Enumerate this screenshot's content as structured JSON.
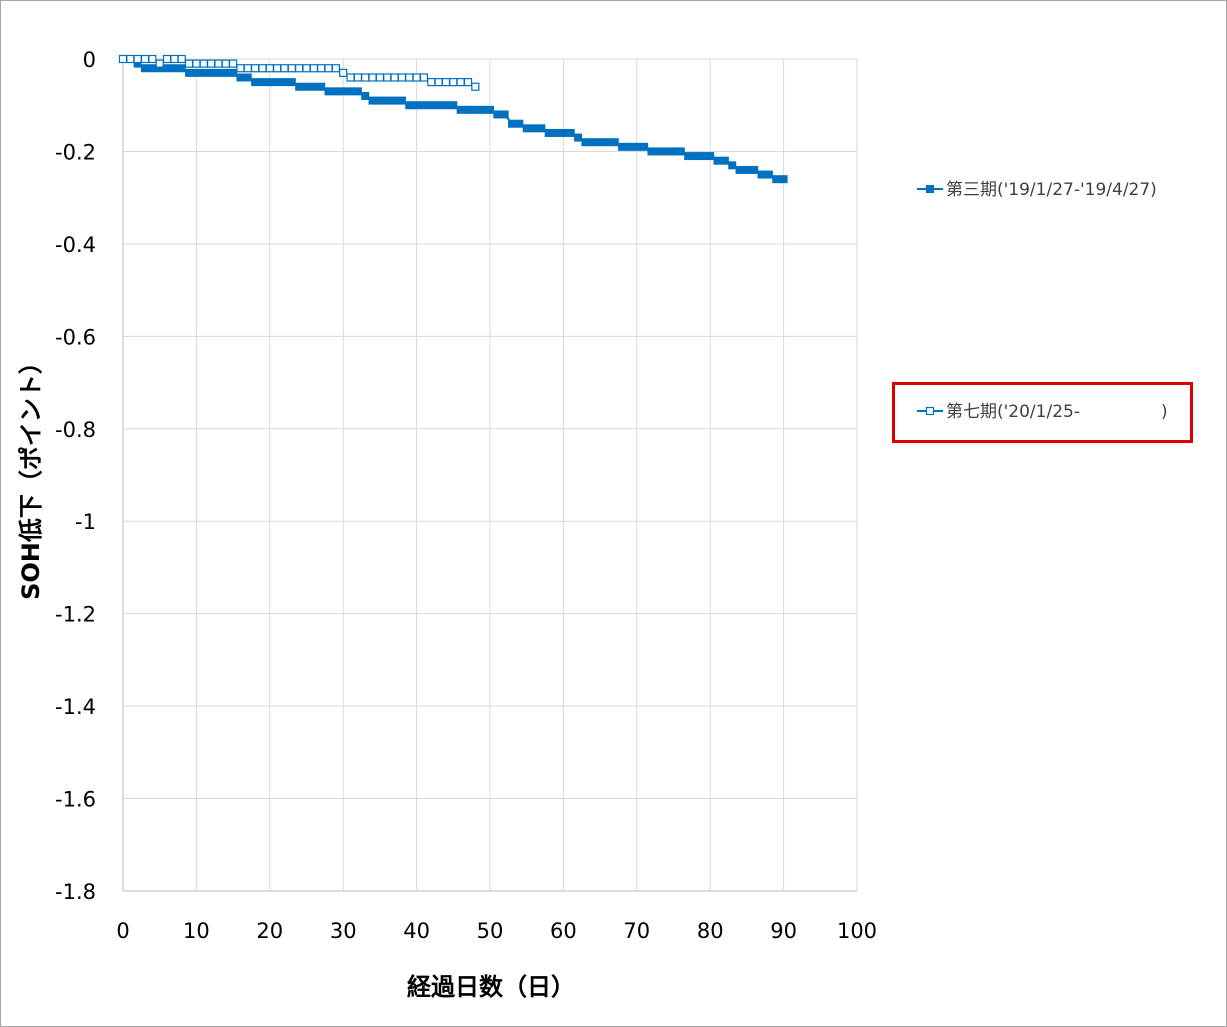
{
  "chart_data": {
    "type": "line",
    "title": "",
    "xlabel": "経過日数（日）",
    "ylabel": "SOH低下（ポイント）",
    "xlim": [
      0,
      100
    ],
    "ylim": [
      -1.8,
      0
    ],
    "x_ticks": [
      "0",
      "10",
      "20",
      "30",
      "40",
      "50",
      "60",
      "70",
      "80",
      "90",
      "100"
    ],
    "y_ticks": [
      "0",
      "-0.2",
      "-0.4",
      "-0.6",
      "-0.8",
      "-1",
      "-1.2",
      "-1.4",
      "-1.6",
      "-1.8"
    ],
    "grid": true,
    "legend_position": "right",
    "series": [
      {
        "name": "第三期('19/1/27-'19/4/27)",
        "marker": "filled-square",
        "color": "#0070c0",
        "x": [
          0,
          1,
          2,
          3,
          4,
          5,
          6,
          7,
          8,
          9,
          10,
          11,
          12,
          13,
          14,
          15,
          16,
          17,
          18,
          19,
          20,
          21,
          22,
          23,
          24,
          25,
          26,
          27,
          28,
          29,
          30,
          31,
          32,
          33,
          34,
          35,
          36,
          37,
          38,
          39,
          40,
          41,
          42,
          43,
          44,
          45,
          46,
          47,
          48,
          49,
          50,
          51,
          52,
          53,
          54,
          55,
          56,
          57,
          58,
          59,
          60,
          61,
          62,
          63,
          64,
          65,
          66,
          67,
          68,
          69,
          70,
          71,
          72,
          73,
          74,
          75,
          76,
          77,
          78,
          79,
          80,
          81,
          82,
          83,
          84,
          85,
          86,
          87,
          88,
          89,
          90
        ],
        "y": [
          0,
          0,
          -0.01,
          -0.02,
          -0.02,
          -0.02,
          -0.02,
          -0.02,
          -0.02,
          -0.03,
          -0.03,
          -0.03,
          -0.03,
          -0.03,
          -0.03,
          -0.03,
          -0.04,
          -0.04,
          -0.05,
          -0.05,
          -0.05,
          -0.05,
          -0.05,
          -0.05,
          -0.06,
          -0.06,
          -0.06,
          -0.06,
          -0.07,
          -0.07,
          -0.07,
          -0.07,
          -0.07,
          -0.08,
          -0.09,
          -0.09,
          -0.09,
          -0.09,
          -0.09,
          -0.1,
          -0.1,
          -0.1,
          -0.1,
          -0.1,
          -0.1,
          -0.1,
          -0.11,
          -0.11,
          -0.11,
          -0.11,
          -0.11,
          -0.12,
          -0.12,
          -0.14,
          -0.14,
          -0.15,
          -0.15,
          -0.15,
          -0.16,
          -0.16,
          -0.16,
          -0.16,
          -0.17,
          -0.18,
          -0.18,
          -0.18,
          -0.18,
          -0.18,
          -0.19,
          -0.19,
          -0.19,
          -0.19,
          -0.2,
          -0.2,
          -0.2,
          -0.2,
          -0.2,
          -0.21,
          -0.21,
          -0.21,
          -0.21,
          -0.22,
          -0.22,
          -0.23,
          -0.24,
          -0.24,
          -0.24,
          -0.25,
          -0.25,
          -0.26,
          -0.26
        ]
      },
      {
        "name": "第七期('20/1/25-               )",
        "marker": "open-square",
        "color": "#0070c0",
        "x": [
          0,
          1,
          2,
          3,
          4,
          5,
          6,
          7,
          8,
          9,
          10,
          11,
          12,
          13,
          14,
          15,
          16,
          17,
          18,
          19,
          20,
          21,
          22,
          23,
          24,
          25,
          26,
          27,
          28,
          29,
          30,
          31,
          32,
          33,
          34,
          35,
          36,
          37,
          38,
          39,
          40,
          41,
          42,
          43,
          44,
          45,
          46,
          47,
          48
        ],
        "y": [
          0,
          0,
          0,
          0,
          0,
          -0.01,
          0,
          0,
          0,
          -0.01,
          -0.01,
          -0.01,
          -0.01,
          -0.01,
          -0.01,
          -0.01,
          -0.02,
          -0.02,
          -0.02,
          -0.02,
          -0.02,
          -0.02,
          -0.02,
          -0.02,
          -0.02,
          -0.02,
          -0.02,
          -0.02,
          -0.02,
          -0.02,
          -0.03,
          -0.04,
          -0.04,
          -0.04,
          -0.04,
          -0.04,
          -0.04,
          -0.04,
          -0.04,
          -0.04,
          -0.04,
          -0.04,
          -0.05,
          -0.05,
          -0.05,
          -0.05,
          -0.05,
          -0.05,
          -0.06
        ]
      }
    ]
  }
}
